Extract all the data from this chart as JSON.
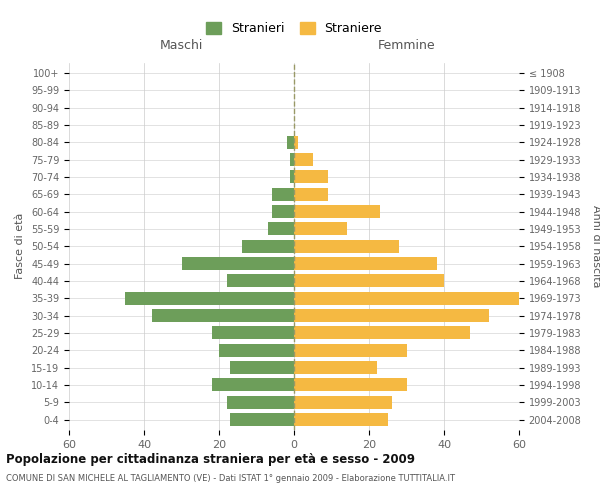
{
  "age_groups": [
    "0-4",
    "5-9",
    "10-14",
    "15-19",
    "20-24",
    "25-29",
    "30-34",
    "35-39",
    "40-44",
    "45-49",
    "50-54",
    "55-59",
    "60-64",
    "65-69",
    "70-74",
    "75-79",
    "80-84",
    "85-89",
    "90-94",
    "95-99",
    "100+"
  ],
  "birth_years": [
    "2004-2008",
    "1999-2003",
    "1994-1998",
    "1989-1993",
    "1984-1988",
    "1979-1983",
    "1974-1978",
    "1969-1973",
    "1964-1968",
    "1959-1963",
    "1954-1958",
    "1949-1953",
    "1944-1948",
    "1939-1943",
    "1934-1938",
    "1929-1933",
    "1924-1928",
    "1919-1923",
    "1914-1918",
    "1909-1913",
    "≤ 1908"
  ],
  "males": [
    17,
    18,
    22,
    17,
    20,
    22,
    38,
    45,
    18,
    30,
    14,
    7,
    6,
    6,
    1,
    1,
    2,
    0,
    0,
    0,
    0
  ],
  "females": [
    25,
    26,
    30,
    22,
    30,
    47,
    52,
    60,
    40,
    38,
    28,
    14,
    23,
    9,
    9,
    5,
    1,
    0,
    0,
    0,
    0
  ],
  "male_color": "#6d9e5a",
  "female_color": "#f5b942",
  "background_color": "#ffffff",
  "grid_color": "#cccccc",
  "title": "Popolazione per cittadinanza straniera per età e sesso - 2009",
  "subtitle": "COMUNE DI SAN MICHELE AL TAGLIAMENTO (VE) - Dati ISTAT 1° gennaio 2009 - Elaborazione TUTTITALIA.IT",
  "xlabel_left": "Maschi",
  "xlabel_right": "Femmine",
  "ylabel_left": "Fasce di età",
  "ylabel_right": "Anni di nascita",
  "legend_male": "Stranieri",
  "legend_female": "Straniere",
  "xlim": 60,
  "dashed_line_color": "#999966"
}
